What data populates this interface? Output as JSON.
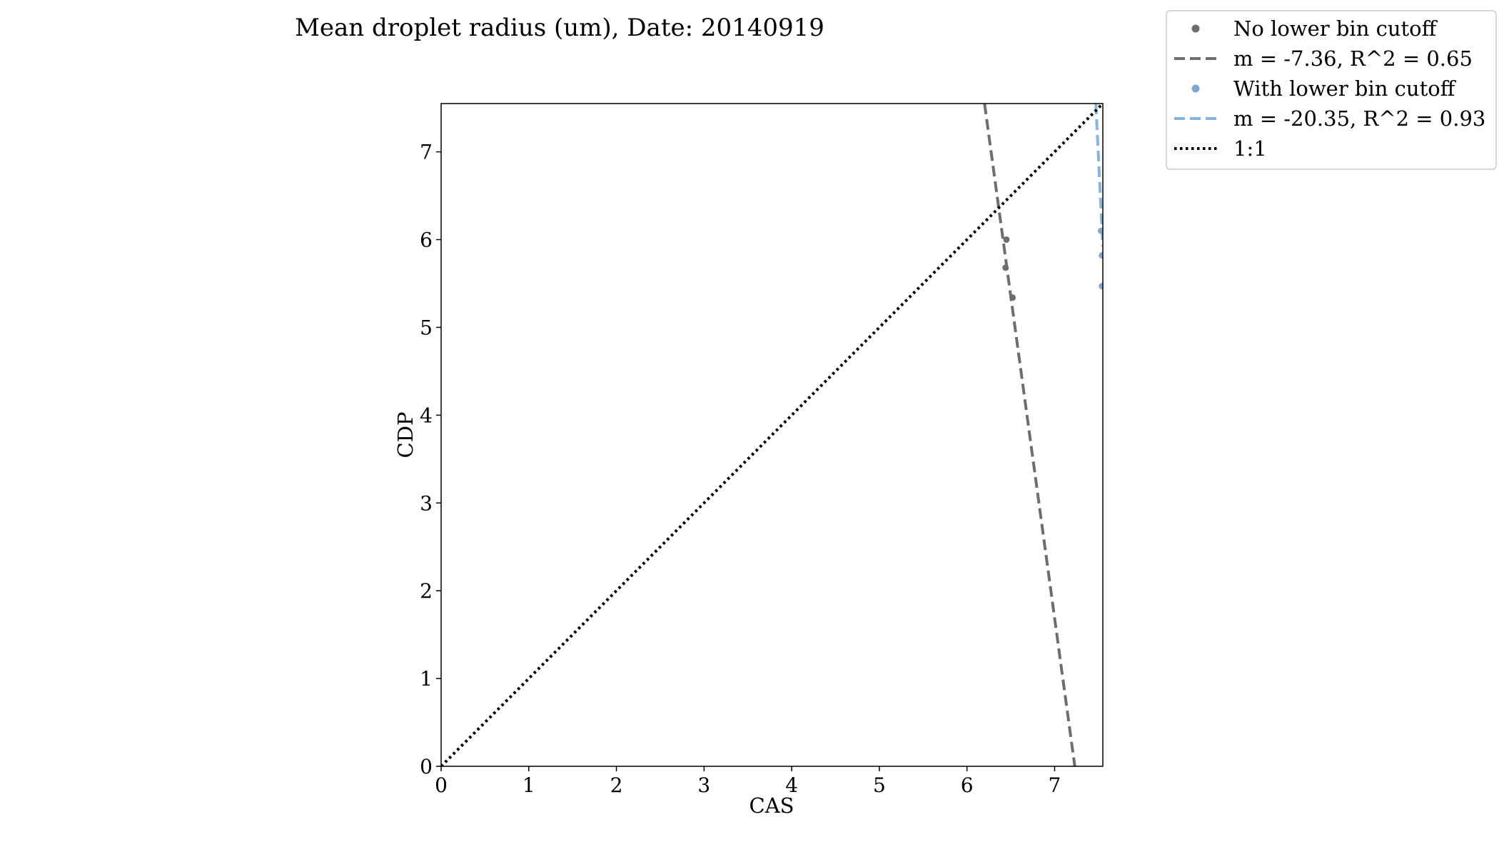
{
  "chart_data": {
    "type": "scatter",
    "title": "Mean droplet radius (um), Date: 20140919",
    "xlabel": "CAS",
    "ylabel": "CDP",
    "xlim": [
      0,
      7.55
    ],
    "ylim": [
      0,
      7.55
    ],
    "x_ticks": [
      "0",
      "1",
      "2",
      "3",
      "4",
      "5",
      "6",
      "7"
    ],
    "y_ticks": [
      "0",
      "1",
      "2",
      "3",
      "4",
      "5",
      "6",
      "7"
    ],
    "grid": false,
    "legend_position": "outside top-right",
    "series": [
      {
        "name": "No lower bin cutoff",
        "kind": "scatter",
        "color": "#6e6e6e",
        "points": [
          [
            6.45,
            6.0
          ],
          [
            6.44,
            5.68
          ],
          [
            6.52,
            5.34
          ]
        ]
      },
      {
        "name": "m = -7.36, R^2 = 0.65",
        "kind": "fit-line",
        "style": "dashed",
        "color": "#6e6e6e",
        "slope": -7.36,
        "r2": 0.65,
        "points": [
          [
            6.2,
            7.55
          ],
          [
            7.23,
            0.0
          ]
        ]
      },
      {
        "name": "With lower bin cutoff",
        "kind": "scatter",
        "color": "#7fa7d3",
        "points": [
          [
            7.53,
            6.1
          ],
          [
            7.54,
            5.82
          ],
          [
            7.54,
            5.47
          ]
        ]
      },
      {
        "name": "m = -20.35, R^2 = 0.93",
        "kind": "fit-line",
        "style": "dashed",
        "color": "#86b4de",
        "slope": -20.35,
        "r2": 0.93,
        "points": [
          [
            7.47,
            7.55
          ],
          [
            7.55,
            5.92
          ]
        ]
      },
      {
        "name": "1:1",
        "kind": "reference-line",
        "style": "dotted",
        "color": "#000000",
        "points": [
          [
            0,
            0
          ],
          [
            7.55,
            7.55
          ]
        ]
      }
    ]
  }
}
